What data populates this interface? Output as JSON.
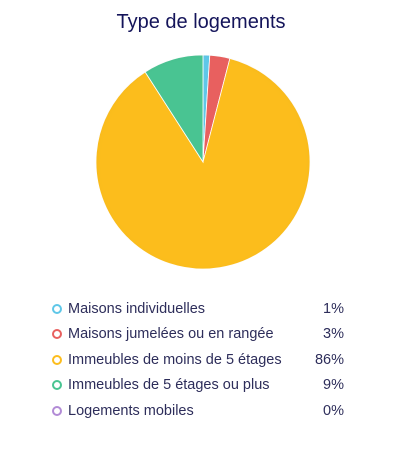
{
  "chart_data": {
    "type": "pie",
    "title": "Type de logements",
    "legend_position": "bottom",
    "slices": [
      {
        "label": "Maisons individuelles",
        "value": 1,
        "display": "1%",
        "color": "#5fc7e8"
      },
      {
        "label": "Maisons jumelées ou en rangée",
        "value": 3,
        "display": "3%",
        "color": "#e8605f"
      },
      {
        "label": "Immeubles de moins de 5 étages",
        "value": 86,
        "display": "86%",
        "color": "#fcbd1e"
      },
      {
        "label": "Immeubles de 5 étages ou plus",
        "value": 9,
        "display": "9%",
        "color": "#49c492"
      },
      {
        "label": "Logements mobiles",
        "value": 0,
        "display": "0%",
        "color": "#b28bd6"
      }
    ]
  }
}
